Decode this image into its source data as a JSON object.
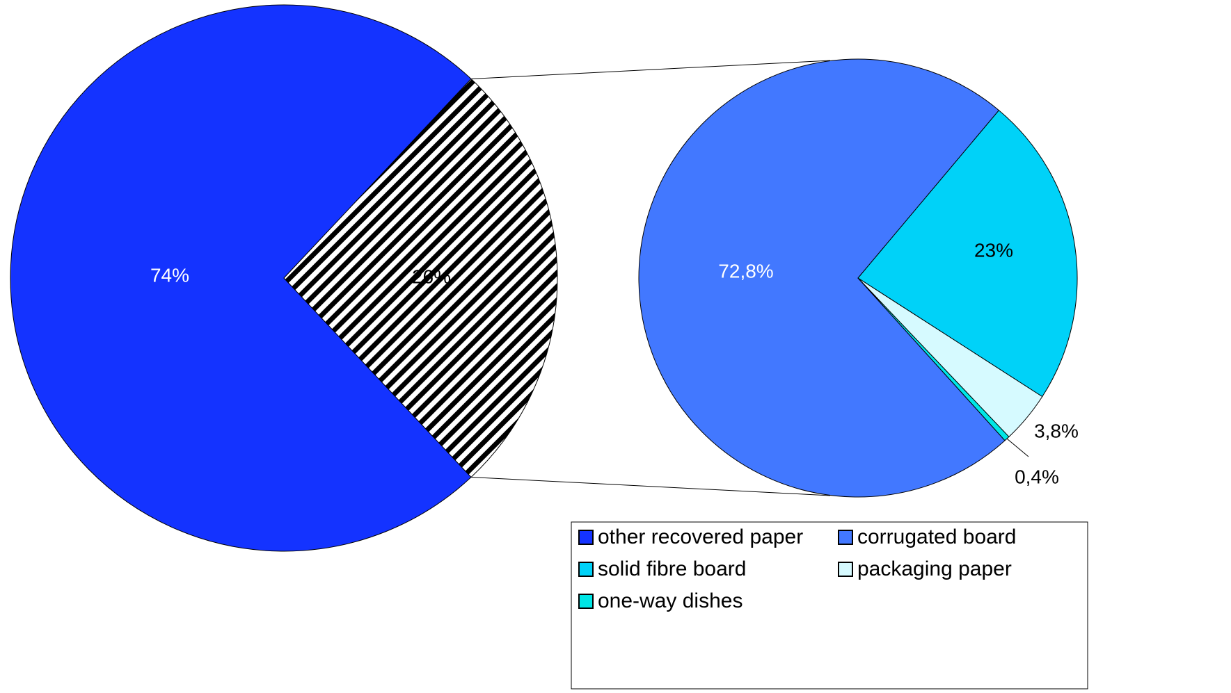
{
  "chart_data": {
    "type": "pie",
    "subtype": "pie-of-pie",
    "main_pie": {
      "slices": [
        {
          "name": "other recovered paper",
          "value": 74,
          "label": "74%",
          "color": "#1433ff"
        },
        {
          "name": "",
          "value": 26,
          "label": "26%",
          "color": "hatched-black-white"
        }
      ]
    },
    "secondary_pie": {
      "slices": [
        {
          "name": "corrugated board",
          "value": 72.8,
          "label": "72,8%",
          "color": "#4278ff"
        },
        {
          "name": "solid fibre board",
          "value": 23,
          "label": "23%",
          "color": "#00d2f8"
        },
        {
          "name": "packaging paper",
          "value": 3.8,
          "label": "3,8%",
          "color": "#d6faff"
        },
        {
          "name": "one-way dishes",
          "value": 0.4,
          "label": "0,4%",
          "color": "#00e6e6"
        }
      ]
    },
    "legend": {
      "placement": "bottom-right",
      "items": [
        {
          "name": "other recovered paper",
          "color": "#1433ff"
        },
        {
          "name": "corrugated board",
          "color": "#4278ff"
        },
        {
          "name": "solid fibre board",
          "color": "#00d2f8"
        },
        {
          "name": "packaging paper",
          "color": "#d6faff"
        },
        {
          "name": "one-way dishes",
          "color": "#00e6e6"
        }
      ]
    }
  }
}
